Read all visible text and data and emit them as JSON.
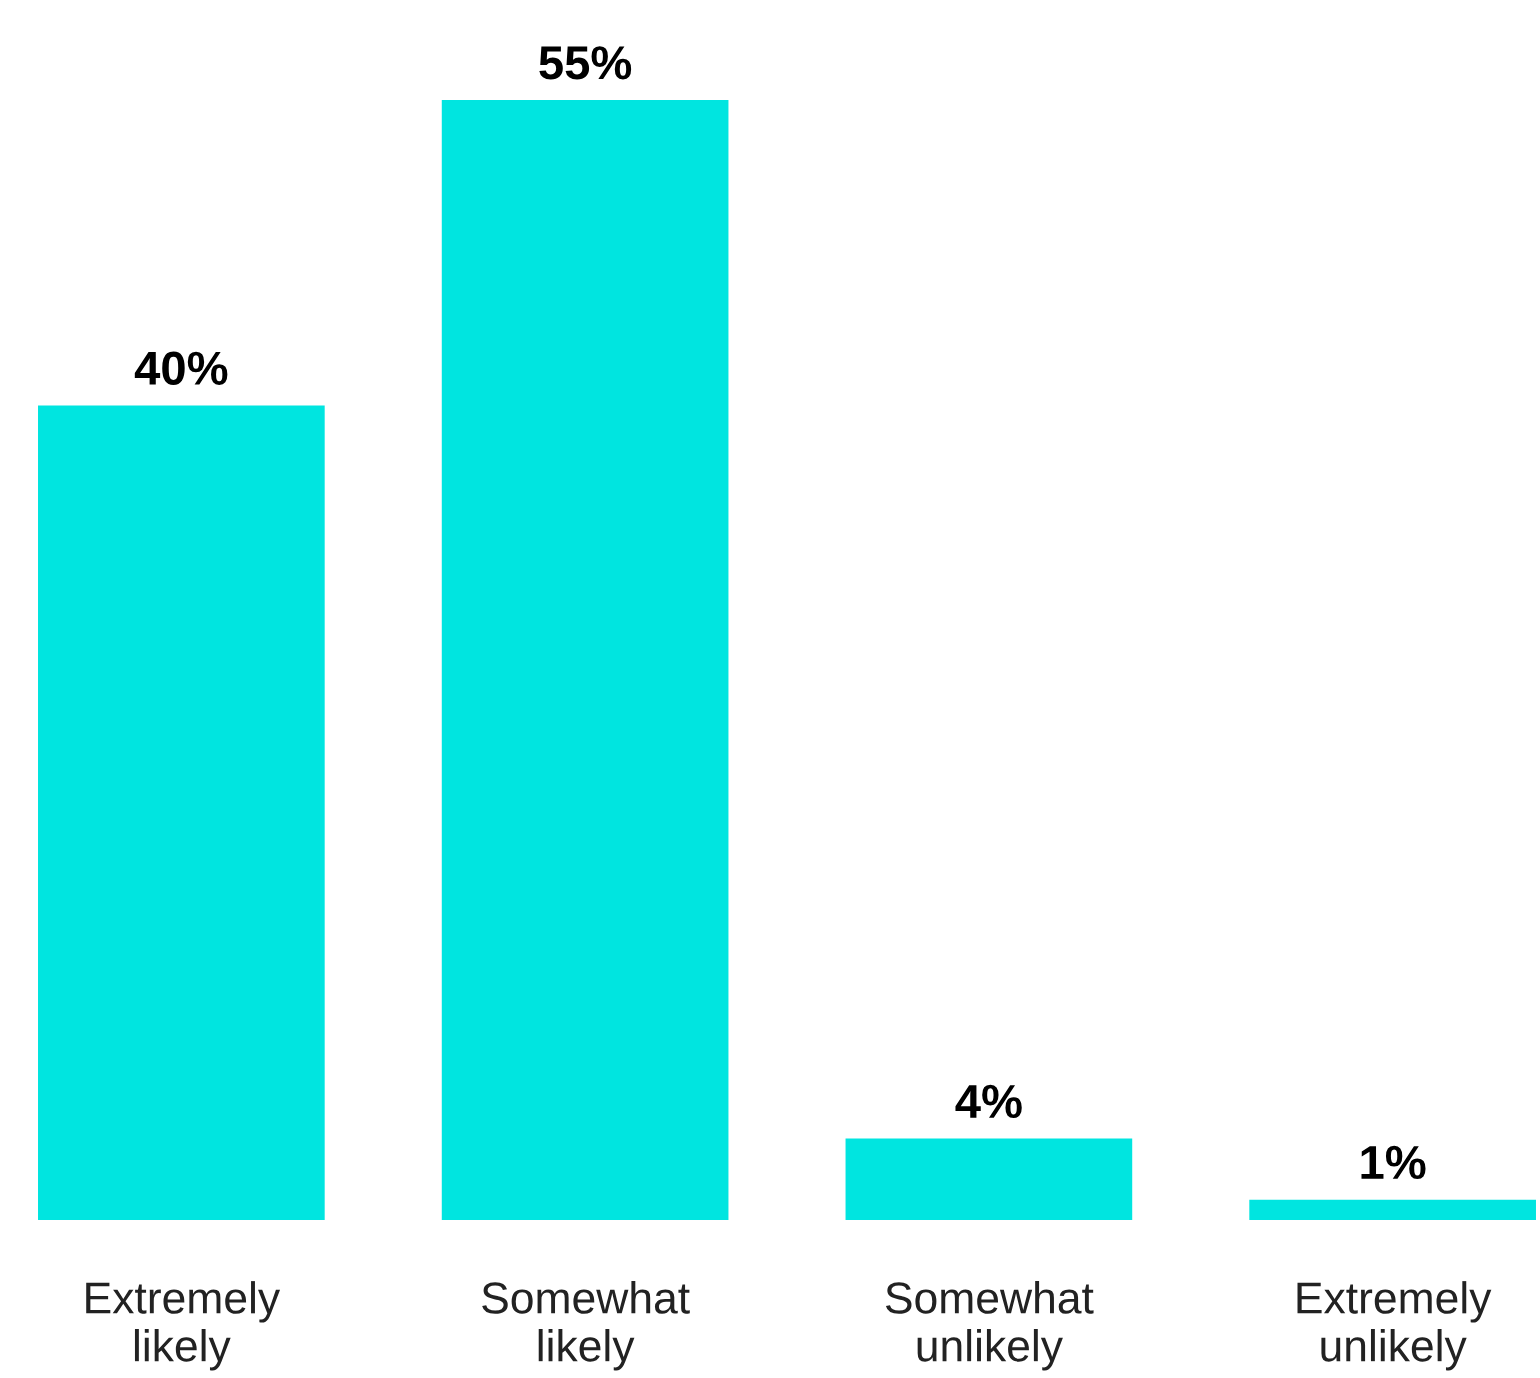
{
  "chart_data": {
    "type": "bar",
    "categories": [
      "Extremely\nlikely",
      "Somewhat\nlikely",
      "Somewhat\nunlikely",
      "Extremely\nunlikely"
    ],
    "values": [
      40,
      55,
      4,
      1
    ],
    "value_labels": [
      "40%",
      "55%",
      "4%",
      "1%"
    ],
    "color": "#00e5e0",
    "grid": false,
    "legend": false
  }
}
